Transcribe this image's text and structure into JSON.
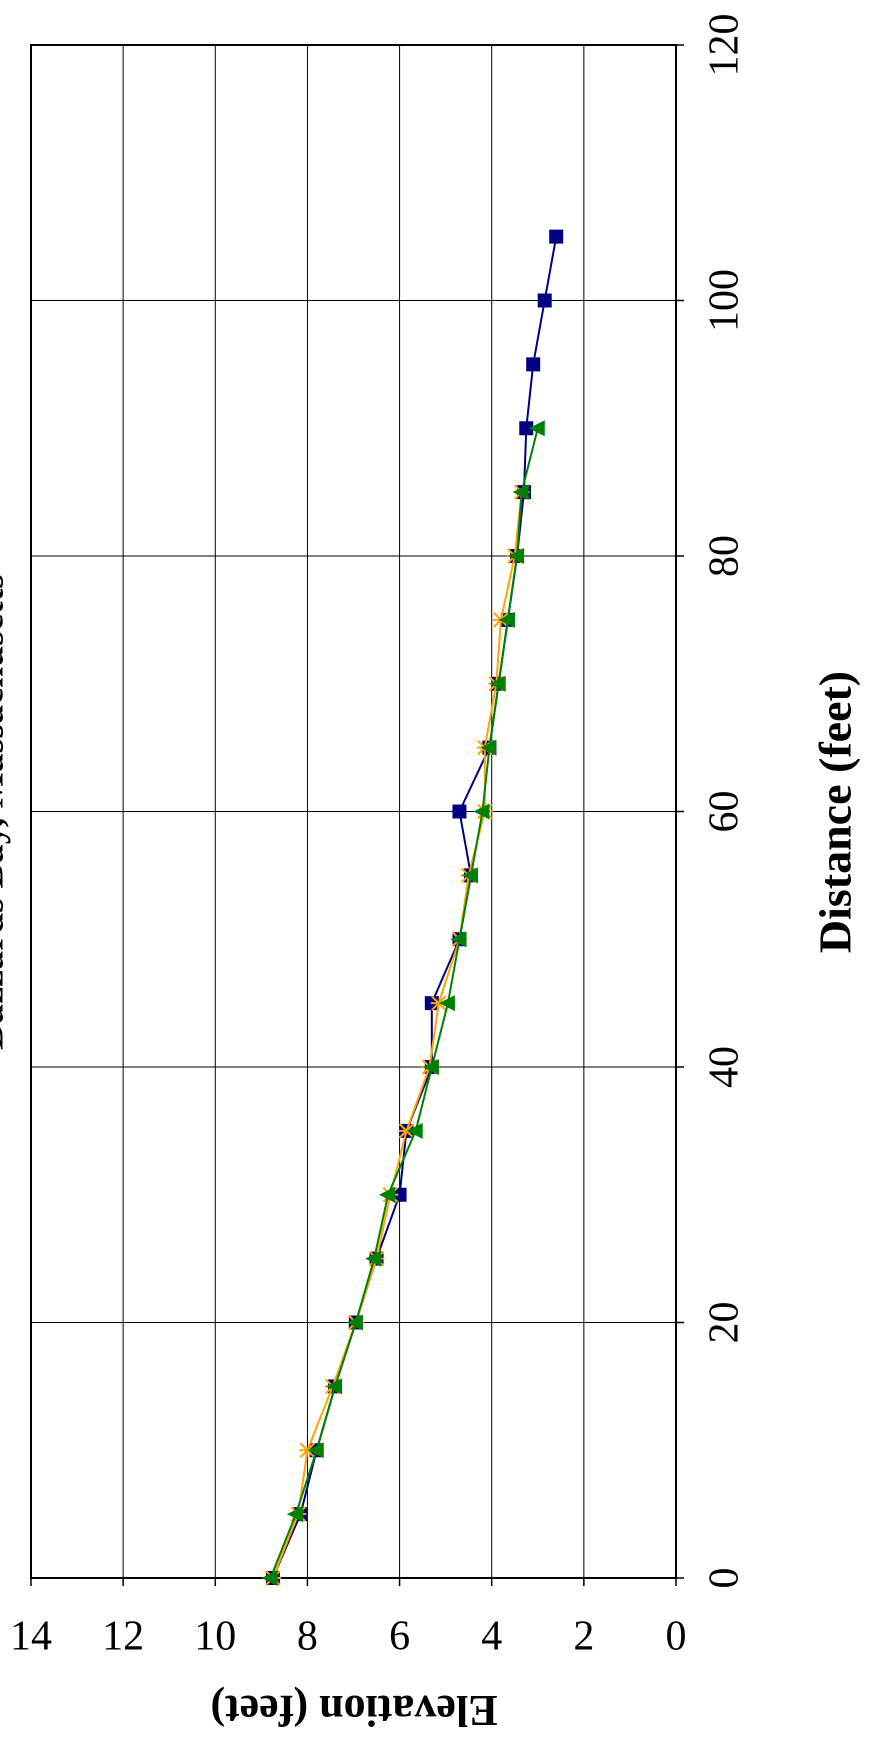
{
  "chart_data": {
    "type": "line",
    "title": "Buzzards Bay, Massachusetts",
    "x_label": "Distance (feet)",
    "y_label": "Elevation (feet)",
    "xlim": [
      0,
      120
    ],
    "xticks": [
      0,
      20,
      40,
      60,
      80,
      100,
      120
    ],
    "ylim": [
      0,
      14
    ],
    "yticks": [
      0,
      2,
      4,
      6,
      8,
      10,
      12,
      14
    ],
    "grid": true,
    "series": [
      {
        "color": "#000080",
        "marker": "square",
        "x": [
          0,
          5,
          10,
          15,
          20,
          25,
          30,
          35,
          40,
          45,
          50,
          55,
          60,
          65,
          70,
          75,
          80,
          85,
          90,
          95,
          100,
          105
        ],
        "values": [
          8.75,
          8.15,
          7.8,
          7.4,
          6.95,
          6.5,
          6.0,
          5.85,
          5.3,
          5.3,
          4.7,
          4.45,
          4.7,
          4.05,
          3.85,
          3.65,
          3.45,
          3.3,
          3.25,
          3.1,
          2.85,
          2.6
        ]
      },
      {
        "color": "#FFA500",
        "marker": "asterisk",
        "x": [
          0,
          5,
          10,
          15,
          20,
          25,
          30,
          35,
          40,
          45,
          50,
          55,
          60,
          65,
          70,
          75,
          80,
          85
        ],
        "values": [
          8.75,
          8.2,
          8.0,
          7.45,
          6.95,
          6.5,
          6.2,
          5.85,
          5.35,
          5.15,
          4.7,
          4.5,
          4.15,
          4.15,
          3.9,
          3.8,
          3.5,
          3.35
        ]
      },
      {
        "color": "#008000",
        "marker": "triangle",
        "x": [
          0,
          5,
          10,
          15,
          20,
          25,
          30,
          35,
          40,
          45,
          50,
          55,
          60,
          65,
          70,
          75,
          80,
          85,
          90
        ],
        "values": [
          8.8,
          8.25,
          7.8,
          7.4,
          6.95,
          6.55,
          6.25,
          5.65,
          5.3,
          4.95,
          4.7,
          4.45,
          4.2,
          4.05,
          3.85,
          3.65,
          3.45,
          3.35,
          3.0
        ]
      }
    ]
  }
}
